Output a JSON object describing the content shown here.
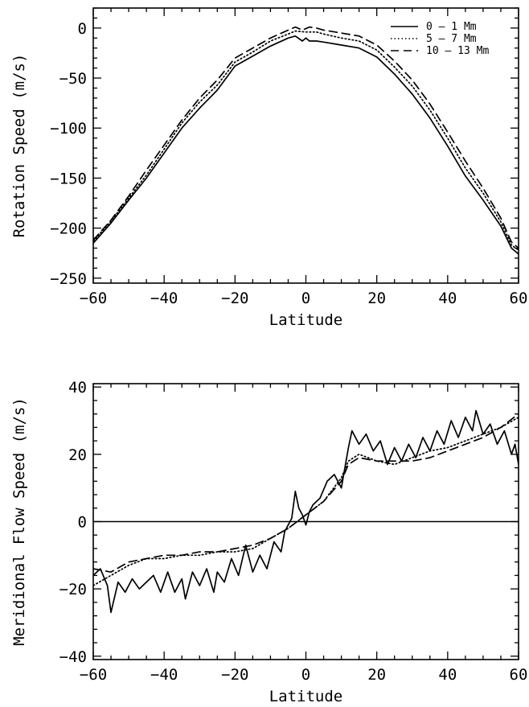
{
  "chart_data": [
    {
      "type": "line",
      "xlabel": "Latitude",
      "ylabel": "Rotation Speed (m/s)",
      "xlim": [
        -60,
        60
      ],
      "ylim": [
        -255,
        20
      ],
      "xticks": [
        -60,
        -40,
        -20,
        0,
        20,
        40,
        60
      ],
      "yticks": [
        0,
        -50,
        -100,
        -150,
        -200,
        -250
      ],
      "xtick_labels": [
        "−60",
        "−40",
        "−20",
        "0",
        "20",
        "40",
        "60"
      ],
      "ytick_labels": [
        "0",
        "−50",
        "−100",
        "−150",
        "−200",
        "−250"
      ],
      "legend": "top-right",
      "series": [
        {
          "name": "0 – 1 Mm",
          "style": "solid",
          "x": [
            -60,
            -55,
            -50,
            -45,
            -40,
            -35,
            -30,
            -25,
            -20,
            -15,
            -10,
            -5,
            -3,
            -1,
            0,
            1,
            3,
            5,
            10,
            15,
            20,
            25,
            30,
            35,
            40,
            45,
            50,
            55,
            58,
            60
          ],
          "y": [
            -215,
            -195,
            -172,
            -150,
            -125,
            -100,
            -80,
            -62,
            -38,
            -28,
            -18,
            -10,
            -8,
            -13,
            -10,
            -13,
            -13,
            -14,
            -17,
            -20,
            -29,
            -46,
            -66,
            -90,
            -118,
            -148,
            -172,
            -198,
            -220,
            -226
          ]
        },
        {
          "name": "5 – 7 Mm",
          "style": "dotted",
          "x": [
            -60,
            -55,
            -50,
            -45,
            -40,
            -35,
            -30,
            -25,
            -20,
            -15,
            -10,
            -5,
            -3,
            0,
            3,
            5,
            10,
            15,
            20,
            25,
            30,
            35,
            40,
            45,
            50,
            55,
            58,
            60
          ],
          "y": [
            -213,
            -193,
            -170,
            -147,
            -121,
            -95,
            -74,
            -57,
            -34,
            -24,
            -13,
            -6,
            -3,
            -4,
            -4,
            -6,
            -10,
            -13,
            -22,
            -39,
            -58,
            -82,
            -110,
            -140,
            -165,
            -194,
            -217,
            -222
          ]
        },
        {
          "name": "10 – 13 Mm",
          "style": "dashed",
          "x": [
            -60,
            -55,
            -50,
            -45,
            -40,
            -35,
            -30,
            -25,
            -20,
            -15,
            -10,
            -5,
            -3,
            -1,
            1,
            3,
            5,
            10,
            15,
            20,
            25,
            30,
            35,
            40,
            45,
            50,
            55,
            58,
            60
          ],
          "y": [
            -212,
            -192,
            -168,
            -142,
            -117,
            -92,
            -70,
            -52,
            -30,
            -20,
            -10,
            -2,
            1,
            -2,
            1,
            0,
            -2,
            -5,
            -8,
            -17,
            -33,
            -52,
            -76,
            -104,
            -133,
            -160,
            -190,
            -214,
            -220
          ]
        }
      ]
    },
    {
      "type": "line",
      "xlabel": "Latitude",
      "ylabel": "Meridional Flow Speed (m/s)",
      "xlim": [
        -60,
        60
      ],
      "ylim": [
        -41,
        41
      ],
      "xticks": [
        -60,
        -40,
        -20,
        0,
        20,
        40,
        60
      ],
      "yticks": [
        40,
        20,
        0,
        -20,
        -40
      ],
      "xtick_labels": [
        "−60",
        "−40",
        "−20",
        "0",
        "20",
        "40",
        "60"
      ],
      "ytick_labels": [
        "40",
        "20",
        "0",
        "−20",
        "−40"
      ],
      "reference_line_y": 0,
      "series": [
        {
          "name": "0 – 1 Mm",
          "style": "solid",
          "x": [
            -60,
            -58,
            -56,
            -55,
            -53,
            -51,
            -49,
            -47,
            -45,
            -43,
            -41,
            -39,
            -37,
            -35,
            -34,
            -32,
            -30,
            -28,
            -26,
            -25,
            -23,
            -21,
            -19,
            -17,
            -15,
            -13,
            -11,
            -9,
            -7,
            -6,
            -4,
            -3,
            -2,
            -1,
            0,
            1,
            2,
            4,
            6,
            8,
            10,
            12,
            13,
            15,
            17,
            19,
            21,
            23,
            25,
            27,
            29,
            31,
            33,
            35,
            37,
            39,
            41,
            43,
            45,
            47,
            48,
            50,
            52,
            54,
            56,
            58,
            59,
            60
          ],
          "y": [
            -16,
            -14,
            -19,
            -27,
            -18,
            -21,
            -17,
            -20,
            -18,
            -16,
            -21,
            -15,
            -21,
            -17,
            -23,
            -15,
            -19,
            -14,
            -21,
            -15,
            -18,
            -11,
            -16,
            -7,
            -15,
            -10,
            -14,
            -6,
            -9,
            -3,
            1,
            9,
            4,
            2,
            -1,
            3,
            5,
            7,
            12,
            14,
            10,
            22,
            27,
            23,
            26,
            21,
            24,
            17,
            22,
            18,
            23,
            19,
            25,
            21,
            27,
            23,
            30,
            25,
            31,
            27,
            33,
            26,
            29,
            23,
            27,
            20,
            23,
            17
          ]
        },
        {
          "name": "5 – 7 Mm",
          "style": "dotted",
          "x": [
            -60,
            -55,
            -50,
            -45,
            -40,
            -35,
            -30,
            -25,
            -20,
            -15,
            -10,
            -5,
            0,
            5,
            10,
            12,
            15,
            20,
            25,
            30,
            35,
            40,
            45,
            50,
            55,
            60
          ],
          "y": [
            -19,
            -16,
            -13,
            -11,
            -11,
            -10,
            -10,
            -9,
            -9,
            -8,
            -5,
            -2,
            2,
            6,
            13,
            18,
            20,
            18,
            17,
            19,
            21,
            22,
            24,
            26,
            28,
            31
          ]
        },
        {
          "name": "10 – 13 Mm",
          "style": "dashed",
          "x": [
            -60,
            -55,
            -50,
            -45,
            -40,
            -35,
            -30,
            -25,
            -20,
            -15,
            -10,
            -5,
            0,
            5,
            10,
            12,
            15,
            20,
            25,
            30,
            35,
            40,
            45,
            50,
            55,
            60
          ],
          "y": [
            -14,
            -15,
            -12,
            -11,
            -10,
            -10,
            -9,
            -9,
            -8,
            -7,
            -5,
            -2,
            2,
            6,
            12,
            17,
            19,
            18,
            18,
            18,
            19,
            21,
            23,
            25,
            28,
            32
          ]
        }
      ]
    }
  ]
}
